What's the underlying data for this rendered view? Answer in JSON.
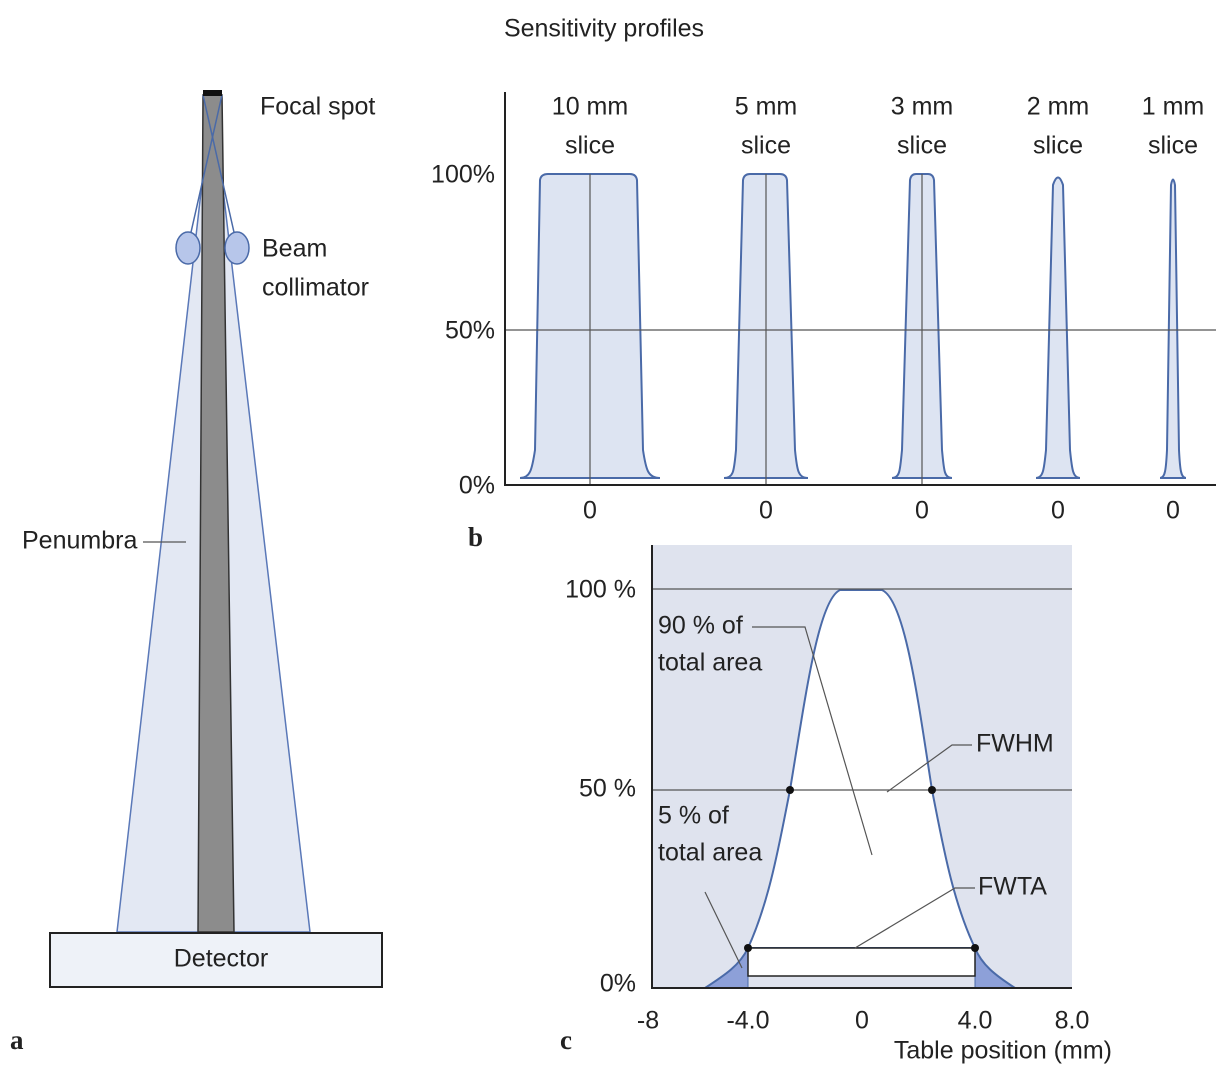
{
  "panel_a": {
    "label": "a",
    "focal_spot": "Focal spot",
    "beam_collimator": [
      "Beam",
      "collimator"
    ],
    "penumbra": "Penumbra",
    "detector": "Detector"
  },
  "panel_b": {
    "label": "b",
    "title": "Sensitivity profiles",
    "y_labels": [
      "100%",
      "50%",
      "0%"
    ],
    "profiles": [
      {
        "slice": [
          "10 mm",
          "slice"
        ],
        "x_label": "0"
      },
      {
        "slice": [
          "5 mm",
          "slice"
        ],
        "x_label": "0"
      },
      {
        "slice": [
          "3 mm",
          "slice"
        ],
        "x_label": "0"
      },
      {
        "slice": [
          "2 mm",
          "slice"
        ],
        "x_label": "0"
      },
      {
        "slice": [
          "1 mm",
          "slice"
        ],
        "x_label": "0"
      }
    ]
  },
  "panel_c": {
    "label": "c",
    "y_labels": [
      "100 %",
      "50 %",
      "0%"
    ],
    "x_labels": [
      "-8",
      "-4.0",
      "0",
      "4.0",
      "8.0"
    ],
    "x_axis_title": "Table position (mm)",
    "annotations": {
      "area90": [
        "90 % of",
        "total area"
      ],
      "area5": [
        "5 % of",
        "total area"
      ],
      "fwhm": "FWHM",
      "fwta": "FWTA"
    }
  }
}
